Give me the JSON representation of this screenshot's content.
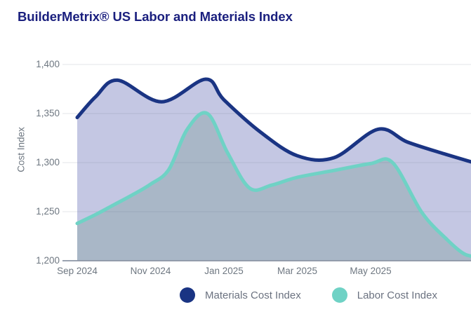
{
  "header": {
    "title": "BuilderMetrix® US Labor and Materials Index",
    "title_color": "#1a1f7e"
  },
  "chart_data": {
    "type": "area",
    "title": "BuilderMetrix® US Labor and Materials Index",
    "xlabel": "",
    "ylabel": "Cost Index",
    "ylim": [
      1200,
      1400
    ],
    "y_ticks": [
      1400,
      1350,
      1300,
      1250,
      1200
    ],
    "x_tick_labels": [
      "Sep 2024",
      "Nov 2024",
      "Jan 2025",
      "Mar 2025",
      "May 2025"
    ],
    "x_tick_months": [
      0,
      2,
      4,
      6,
      8
    ],
    "x_range_months": [
      0,
      10.75
    ],
    "grid": "horizontal",
    "legend_position": "bottom-center",
    "axis_text_color": "#6e7781",
    "gridline_color": "rgba(100,112,135,0.18)",
    "axis_line_color": "#8b95a4",
    "series": [
      {
        "name": "Materials Cost Index",
        "line_color": "#1a3483",
        "fill_color": "#c4c7e3",
        "points": [
          {
            "month": 0,
            "value": 1346
          },
          {
            "month": 0.5,
            "value": 1367
          },
          {
            "month": 1.1,
            "value": 1384
          },
          {
            "month": 2.3,
            "value": 1362
          },
          {
            "month": 3.5,
            "value": 1385
          },
          {
            "month": 4,
            "value": 1364
          },
          {
            "month": 5,
            "value": 1331
          },
          {
            "month": 6,
            "value": 1307
          },
          {
            "month": 7,
            "value": 1305
          },
          {
            "month": 8.2,
            "value": 1334
          },
          {
            "month": 9,
            "value": 1321
          },
          {
            "month": 10,
            "value": 1309
          },
          {
            "month": 10.9,
            "value": 1299
          }
        ]
      },
      {
        "name": "Labor Cost Index",
        "line_color": "#6fd2c5",
        "fill_color": "#a9b7c7",
        "points": [
          {
            "month": 0,
            "value": 1238
          },
          {
            "month": 0.5,
            "value": 1247
          },
          {
            "month": 1,
            "value": 1257
          },
          {
            "month": 1.5,
            "value": 1267
          },
          {
            "month": 2,
            "value": 1278
          },
          {
            "month": 2.5,
            "value": 1293
          },
          {
            "month": 3,
            "value": 1334
          },
          {
            "month": 3.55,
            "value": 1350
          },
          {
            "month": 4.1,
            "value": 1310
          },
          {
            "month": 4.7,
            "value": 1274
          },
          {
            "month": 5.3,
            "value": 1277
          },
          {
            "month": 6,
            "value": 1285
          },
          {
            "month": 7,
            "value": 1292
          },
          {
            "month": 8,
            "value": 1299
          },
          {
            "month": 8.6,
            "value": 1300
          },
          {
            "month": 9.4,
            "value": 1249
          },
          {
            "month": 10.1,
            "value": 1221
          },
          {
            "month": 10.55,
            "value": 1207
          },
          {
            "month": 10.9,
            "value": 1204
          }
        ]
      }
    ]
  },
  "legend": {
    "items": [
      {
        "label": "Materials Cost Index"
      },
      {
        "label": "Labor Cost Index"
      }
    ]
  }
}
